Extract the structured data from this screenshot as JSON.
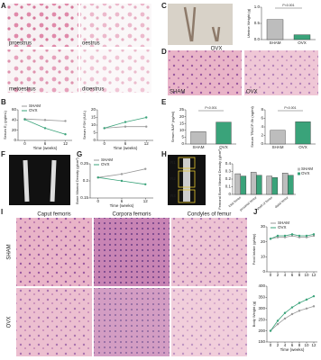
{
  "panel_letters": [
    "A",
    "B",
    "C",
    "D",
    "E",
    "F",
    "G",
    "H",
    "I",
    "J"
  ],
  "estrous_stages": [
    "proestrus",
    "oestrus",
    "metoestrus",
    "dioestrus"
  ],
  "groups": [
    "SHAM",
    "OVX"
  ],
  "femur_regions": [
    "Caput femoris",
    "Corpora femoris",
    "Condyles of femur"
  ],
  "roi_labels": [
    "R1",
    "R2",
    "R3"
  ],
  "charts": [
    {
      "type": "line",
      "ylabel": "Serum E₂ (pg/mL)",
      "xlabel": "Time (weeks)",
      "x": [
        0,
        6,
        12
      ],
      "xlim": [
        -2,
        14
      ],
      "xticks": [
        0,
        6,
        12
      ],
      "ylim": [
        0,
        60
      ],
      "yticks": [
        0,
        20,
        40,
        60
      ],
      "legend": true,
      "series": [
        {
          "name": "SHAM",
          "color": "#9a9a9a",
          "values": [
            42,
            40,
            38
          ]
        },
        {
          "name": "OVX",
          "color": "#3aa37a",
          "values": [
            41,
            24,
            12
          ]
        }
      ]
    },
    {
      "type": "line",
      "ylabel": "Serum FSH (IU/L)",
      "xlabel": "Time (weeks)",
      "x": [
        0,
        6,
        12
      ],
      "xlim": [
        -2,
        14
      ],
      "xticks": [
        0,
        6,
        12
      ],
      "ylim": [
        0,
        20
      ],
      "yticks": [
        0,
        5,
        10,
        15,
        20
      ],
      "legend": false,
      "series": [
        {
          "name": "SHAM",
          "color": "#9a9a9a",
          "values": [
            8,
            9,
            9
          ]
        },
        {
          "name": "OVX",
          "color": "#3aa37a",
          "values": [
            8,
            12,
            15
          ]
        }
      ]
    },
    {
      "type": "bar",
      "ylabel": "Uterine Weight (g)",
      "categories": [
        "SHAM",
        "OVX"
      ],
      "values": [
        0.62,
        0.15
      ],
      "colors": [
        "#bdbdbd",
        "#3aa37a"
      ],
      "ylim": [
        0,
        1
      ],
      "yticks": [
        {
          "value": 0,
          "label": "0.0"
        },
        0.5,
        {
          "value": 1,
          "label": "1.0"
        }
      ],
      "annotation": "P<0.001"
    },
    {
      "type": "bar",
      "ylabel": "Serum BAP (ng/ml)",
      "categories": [
        "SHAM",
        "OVX"
      ],
      "values": [
        9,
        16
      ],
      "colors": [
        "#bdbdbd",
        "#3aa37a"
      ],
      "ylim": [
        0,
        25
      ],
      "yticks": [
        0,
        5,
        10,
        15,
        20,
        25
      ],
      "annotation": "P<0.001"
    },
    {
      "type": "bar",
      "ylabel": "Serum TRACP-5b (ng/ml)",
      "categories": [
        "SHAM",
        "OVX"
      ],
      "values": [
        3.2,
        5.2
      ],
      "colors": [
        "#bdbdbd",
        "#3aa37a"
      ],
      "ylim": [
        0,
        8
      ],
      "yticks": [
        0,
        2,
        4,
        6,
        8
      ],
      "annotation": "P<0.001"
    },
    {
      "type": "line",
      "ylabel": "Bone Mineral Density (g/cm²)",
      "xlabel": "Time (weeks)",
      "x": [
        0,
        6,
        12
      ],
      "xlim": [
        -2,
        14
      ],
      "xticks": [
        0,
        6,
        12
      ],
      "ylim": [
        0.15,
        0.25
      ],
      "yticks": [
        0.15,
        0.2,
        0.25
      ],
      "legend": true,
      "series": [
        {
          "name": "SHAM",
          "color": "#9a9a9a",
          "values": [
            0.21,
            0.22,
            0.235
          ]
        },
        {
          "name": "OVX",
          "color": "#3aa37a",
          "values": [
            0.21,
            0.2,
            0.19
          ]
        }
      ]
    },
    {
      "type": "grouped_bar",
      "ylabel": "Femoral Bone Mineral Density (g/cm²)",
      "categories": [
        "total femur",
        "proximal femur",
        "shaft of femur",
        "distal femur"
      ],
      "ylim": [
        0,
        0.4
      ],
      "yticks": [
        0,
        0.1,
        0.2,
        0.3,
        0.4
      ],
      "legend": true,
      "series": [
        {
          "name": "SHAM",
          "color": "#bdbdbd",
          "values": [
            0.27,
            0.29,
            0.24,
            0.28
          ]
        },
        {
          "name": "OVX",
          "color": "#3aa37a",
          "values": [
            0.24,
            0.25,
            0.22,
            0.25
          ]
        }
      ]
    },
    {
      "type": "line",
      "ylabel": "Food Intake (g/day)",
      "x": [
        0,
        2,
        4,
        6,
        8,
        10,
        12
      ],
      "xlim": [
        -1,
        13
      ],
      "xticks": [
        0,
        2,
        4,
        6,
        8,
        10,
        12
      ],
      "ylim": [
        0,
        30
      ],
      "yticks": [
        0,
        10,
        20,
        30
      ],
      "legend": true,
      "series": [
        {
          "name": "SHAM",
          "color": "#9a9a9a",
          "values": [
            22,
            23,
            23,
            24,
            23,
            23,
            24
          ]
        },
        {
          "name": "OVX",
          "color": "#3aa37a",
          "values": [
            22,
            24,
            24,
            25,
            24,
            24,
            25
          ]
        }
      ]
    },
    {
      "type": "line",
      "ylabel": "Body Weight (g)",
      "xlabel": "Time (weeks)",
      "x": [
        0,
        2,
        4,
        6,
        8,
        10,
        12
      ],
      "xlim": [
        -1,
        13
      ],
      "xticks": [
        0,
        2,
        4,
        6,
        8,
        10,
        12
      ],
      "ylim": [
        150,
        400
      ],
      "yticks": [
        150,
        200,
        250,
        300,
        350,
        400
      ],
      "legend": false,
      "series": [
        {
          "name": "SHAM",
          "color": "#9a9a9a",
          "values": [
            200,
            230,
            255,
            275,
            290,
            300,
            310
          ]
        },
        {
          "name": "OVX",
          "color": "#3aa37a",
          "values": [
            200,
            245,
            280,
            305,
            325,
            340,
            355
          ]
        }
      ]
    }
  ]
}
